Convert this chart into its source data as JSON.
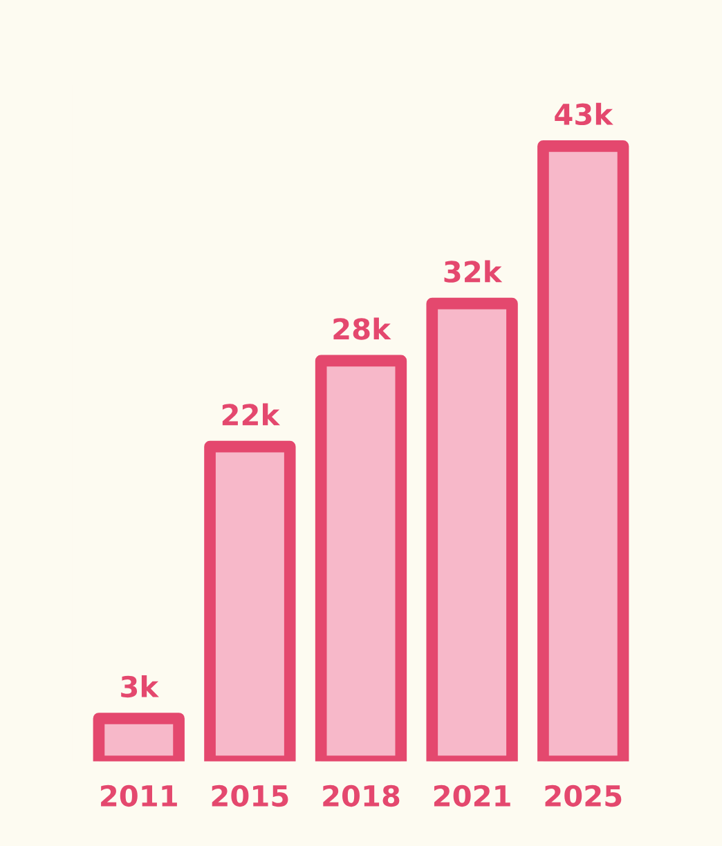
{
  "chart_data": {
    "type": "bar",
    "categories": [
      "2011",
      "2015",
      "2018",
      "2021",
      "2025"
    ],
    "values": [
      3000,
      22000,
      28000,
      32000,
      43000
    ],
    "value_labels": [
      "3k",
      "22k",
      "28k",
      "32k",
      "43k"
    ],
    "color": "#f7b8c9",
    "grid": false,
    "legend": false
  }
}
